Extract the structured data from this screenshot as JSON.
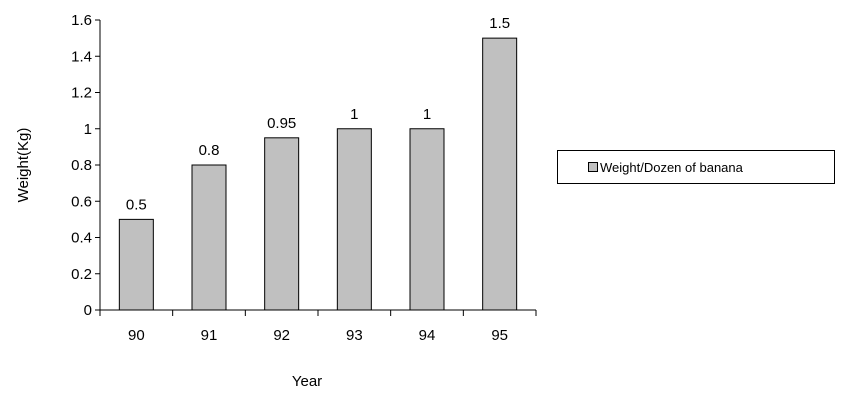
{
  "chart_data": {
    "type": "bar",
    "categories": [
      "90",
      "91",
      "92",
      "93",
      "94",
      "95"
    ],
    "series": [
      {
        "name": "Weight/Dozen of banana",
        "values": [
          0.5,
          0.8,
          0.95,
          1,
          1,
          1.5
        ]
      }
    ],
    "data_labels": [
      "0.5",
      "0.8",
      "0.95",
      "1",
      "1",
      "1.5"
    ],
    "y_ticks": [
      "0",
      "0.2",
      "0.4",
      "0.6",
      "0.8",
      "1",
      "1.2",
      "1.4",
      "1.6"
    ],
    "xlabel": "Year",
    "ylabel": "Weight(Kg)",
    "ylim": [
      0,
      1.6
    ],
    "grid": false,
    "legend_position": "right",
    "bar_color": "#c0c0c0",
    "bar_outline": "#000000"
  }
}
